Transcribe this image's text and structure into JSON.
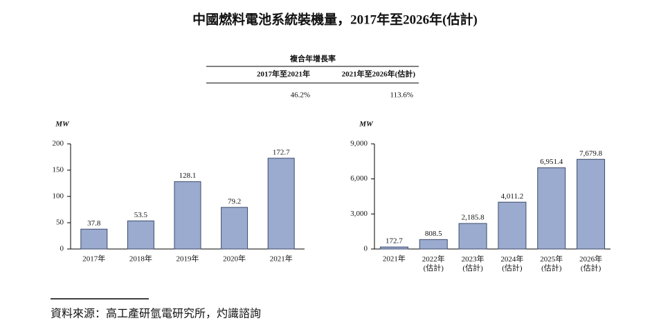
{
  "title": "中國燃料電池系統裝機量，2017年至2026年(估計)",
  "cagr_table": {
    "header": "複合年增長率",
    "columns": [
      "2017年至2021年",
      "2021年至2026年(估計)"
    ],
    "values": [
      "46.2%",
      "113.6%"
    ]
  },
  "source": "資料來源：高工產研氫電研究所，灼識諮詢",
  "chart_data": [
    {
      "type": "bar",
      "y_label": "MW",
      "categories": [
        "2017年",
        "2018年",
        "2019年",
        "2020年",
        "2021年"
      ],
      "values": [
        37.8,
        53.5,
        128.1,
        79.2,
        172.7
      ],
      "color": "#9aabcf",
      "ylim": [
        0,
        200
      ],
      "yticks": [
        0,
        50,
        100,
        150,
        200
      ],
      "grid": false
    },
    {
      "type": "bar",
      "y_label": "MW",
      "categories": [
        "2021年",
        "2022年\n(估計)",
        "2023年\n(估計)",
        "2024年\n(估計)",
        "2025年\n(估計)",
        "2026年\n(估計)"
      ],
      "values": [
        172.7,
        808.5,
        2185.8,
        4011.2,
        6951.4,
        7679.8
      ],
      "value_labels": [
        "172.7",
        "808.5",
        "2,185.8",
        "4,011.2",
        "6,951.4",
        "7,679.8"
      ],
      "color": "#9aabcf",
      "ylim": [
        0,
        9000
      ],
      "yticks": [
        0,
        {
          "value": 3000,
          "label": "3,000"
        },
        {
          "value": 6000,
          "label": "6,000"
        },
        {
          "value": 9000,
          "label": "9,000"
        }
      ],
      "grid": false
    }
  ]
}
